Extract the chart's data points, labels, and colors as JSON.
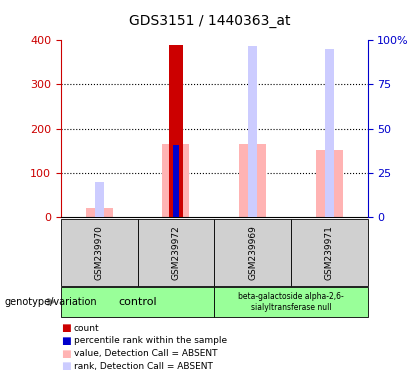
{
  "title": "GDS3151 / 1440363_at",
  "samples": [
    "GSM239970",
    "GSM239972",
    "GSM239969",
    "GSM239971"
  ],
  "count_values": [
    null,
    390,
    null,
    null
  ],
  "percentile_values": [
    null,
    163,
    null,
    null
  ],
  "absent_value_values": [
    20,
    165,
    165,
    152
  ],
  "absent_rank_values": [
    20,
    null,
    97,
    95
  ],
  "ylim_left": [
    0,
    400
  ],
  "yticks_left": [
    0,
    100,
    200,
    300,
    400
  ],
  "yticks_right": [
    0,
    25,
    50,
    75,
    100
  ],
  "yticklabels_right": [
    "0",
    "25",
    "50",
    "75",
    "100%"
  ],
  "color_count": "#cc0000",
  "color_percentile": "#0000cc",
  "color_absent_value": "#ffb3b3",
  "color_absent_rank": "#ccccff",
  "plot_bg": "#ffffff",
  "legend_labels": [
    "count",
    "percentile rank within the sample",
    "value, Detection Call = ABSENT",
    "rank, Detection Call = ABSENT"
  ],
  "legend_colors": [
    "#cc0000",
    "#0000cc",
    "#ffb3b3",
    "#ccccff"
  ]
}
